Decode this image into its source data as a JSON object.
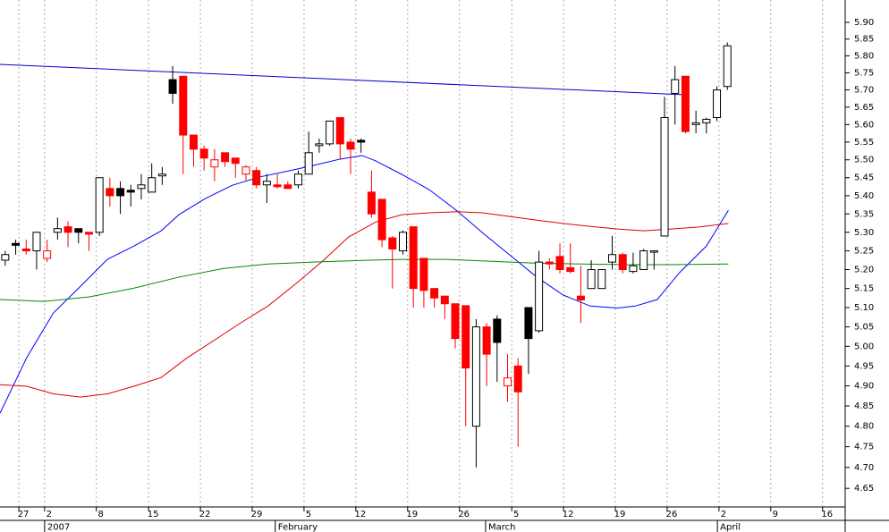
{
  "chart_data": {
    "type": "candlestick",
    "log_scale": true,
    "grid": true,
    "color": "#000000",
    "down_color": "#ff0000",
    "xlim": [
      -0.5,
      80.26
    ],
    "ylim": [
      4.606,
      5.968
    ],
    "yticks": [
      4.65,
      4.7,
      4.75,
      4.8,
      4.85,
      4.9,
      4.95,
      5,
      5.05,
      5.1,
      5.15,
      5.2,
      5.25,
      5.3,
      5.35,
      5.4,
      5.45,
      5.5,
      5.55,
      5.6,
      5.65,
      5.7,
      5.75,
      5.8,
      5.85,
      5.9
    ],
    "yticks_labels": [
      "4.65",
      "4.70",
      "4.75",
      "4.80",
      "4.85",
      "4.90",
      "4.95",
      "5.00",
      "5.05",
      "5.10",
      "5.15",
      "5.20",
      "5.25",
      "5.30",
      "5.35",
      "5.40",
      "5.45",
      "5.50",
      "5.55",
      "5.60",
      "5.65",
      "5.70",
      "5.75",
      "5.80",
      "5.85",
      "5.90"
    ],
    "xticks": [
      {
        "value": 1.3,
        "label": "27"
      },
      {
        "value": 3.76,
        "label": "2"
      },
      {
        "value": 8.7,
        "label": "8"
      },
      {
        "value": 13.7,
        "label": "15"
      },
      {
        "value": 18.65,
        "label": "22"
      },
      {
        "value": 23.6,
        "label": "29"
      },
      {
        "value": 28.55,
        "label": "5"
      },
      {
        "value": 33.5,
        "label": "12"
      },
      {
        "value": 38.45,
        "label": "19"
      },
      {
        "value": 43.4,
        "label": "26"
      },
      {
        "value": 48.4,
        "label": "5"
      },
      {
        "value": 53.35,
        "label": "12"
      },
      {
        "value": 58.3,
        "label": "19"
      },
      {
        "value": 63.25,
        "label": "26"
      },
      {
        "value": 68.2,
        "label": "2"
      },
      {
        "value": 73.15,
        "label": "9"
      },
      {
        "value": 78.1,
        "label": "16"
      }
    ],
    "months": [
      {
        "value": 3.76,
        "label": "2007"
      },
      {
        "value": 25.8,
        "label": "February"
      },
      {
        "value": 45.9,
        "label": "March"
      },
      {
        "value": 68.05,
        "label": "April"
      }
    ],
    "candles": [
      {
        "o": 5.225,
        "h": 5.25,
        "l": 5.21,
        "c": 5.24
      },
      {
        "o": 5.27,
        "h": 5.28,
        "l": 5.24,
        "c": 5.265
      },
      {
        "o": 5.255,
        "h": 5.28,
        "l": 5.24,
        "c": 5.25
      },
      {
        "o": 5.25,
        "h": 5.3,
        "l": 5.2,
        "c": 5.3
      },
      {
        "o": 5.23,
        "h": 5.28,
        "l": 5.22,
        "c": 5.25
      },
      {
        "o": 5.3,
        "h": 5.34,
        "l": 5.28,
        "c": 5.31
      },
      {
        "o": 5.315,
        "h": 5.33,
        "l": 5.26,
        "c": 5.3
      },
      {
        "o": 5.31,
        "h": 5.31,
        "l": 5.27,
        "c": 5.3
      },
      {
        "o": 5.3,
        "h": 5.3,
        "l": 5.25,
        "c": 5.295
      },
      {
        "o": 5.3,
        "h": 5.45,
        "l": 5.29,
        "c": 5.45
      },
      {
        "o": 5.42,
        "h": 5.45,
        "l": 5.37,
        "c": 5.4
      },
      {
        "o": 5.42,
        "h": 5.44,
        "l": 5.35,
        "c": 5.4
      },
      {
        "o": 5.415,
        "h": 5.43,
        "l": 5.37,
        "c": 5.41
      },
      {
        "o": 5.42,
        "h": 5.46,
        "l": 5.39,
        "c": 5.43
      },
      {
        "o": 5.41,
        "h": 5.49,
        "l": 5.41,
        "c": 5.45
      },
      {
        "o": 5.455,
        "h": 5.48,
        "l": 5.43,
        "c": 5.46
      },
      {
        "o": 5.73,
        "h": 5.77,
        "l": 5.66,
        "c": 5.69
      },
      {
        "o": 5.74,
        "h": 5.74,
        "l": 5.46,
        "c": 5.57
      },
      {
        "o": 5.57,
        "h": 5.57,
        "l": 5.48,
        "c": 5.53
      },
      {
        "o": 5.53,
        "h": 5.54,
        "l": 5.47,
        "c": 5.505
      },
      {
        "o": 5.48,
        "h": 5.53,
        "l": 5.44,
        "c": 5.5
      },
      {
        "o": 5.52,
        "h": 5.52,
        "l": 5.48,
        "c": 5.495
      },
      {
        "o": 5.505,
        "h": 5.505,
        "l": 5.45,
        "c": 5.49
      },
      {
        "o": 5.46,
        "h": 5.485,
        "l": 5.44,
        "c": 5.48
      },
      {
        "o": 5.47,
        "h": 5.48,
        "l": 5.42,
        "c": 5.43
      },
      {
        "o": 5.43,
        "h": 5.46,
        "l": 5.38,
        "c": 5.44
      },
      {
        "o": 5.43,
        "h": 5.46,
        "l": 5.42,
        "c": 5.425
      },
      {
        "o": 5.43,
        "h": 5.44,
        "l": 5.42,
        "c": 5.42
      },
      {
        "o": 5.43,
        "h": 5.47,
        "l": 5.42,
        "c": 5.46
      },
      {
        "o": 5.46,
        "h": 5.58,
        "l": 5.46,
        "c": 5.52
      },
      {
        "o": 5.54,
        "h": 5.56,
        "l": 5.52,
        "c": 5.545
      },
      {
        "o": 5.545,
        "h": 5.61,
        "l": 5.54,
        "c": 5.61
      },
      {
        "o": 5.62,
        "h": 5.62,
        "l": 5.5,
        "c": 5.545
      },
      {
        "o": 5.55,
        "h": 5.56,
        "l": 5.46,
        "c": 5.53
      },
      {
        "o": 5.555,
        "h": 5.56,
        "l": 5.52,
        "c": 5.55
      },
      {
        "o": 5.41,
        "h": 5.47,
        "l": 5.34,
        "c": 5.35
      },
      {
        "o": 5.39,
        "h": 5.39,
        "l": 5.26,
        "c": 5.28
      },
      {
        "o": 5.285,
        "h": 5.29,
        "l": 5.15,
        "c": 5.255
      },
      {
        "o": 5.25,
        "h": 5.305,
        "l": 5.24,
        "c": 5.3
      },
      {
        "o": 5.315,
        "h": 5.315,
        "l": 5.1,
        "c": 5.15
      },
      {
        "o": 5.23,
        "h": 5.23,
        "l": 5.1,
        "c": 5.145
      },
      {
        "o": 5.15,
        "h": 5.15,
        "l": 5.1,
        "c": 5.125
      },
      {
        "o": 5.13,
        "h": 5.13,
        "l": 5.07,
        "c": 5.11
      },
      {
        "o": 5.11,
        "h": 5.11,
        "l": 4.995,
        "c": 5.02
      },
      {
        "o": 5.105,
        "h": 5.105,
        "l": 4.8,
        "c": 4.945
      },
      {
        "o": 4.8,
        "h": 5.07,
        "l": 4.7,
        "c": 5.05
      },
      {
        "o": 5.05,
        "h": 5.06,
        "l": 4.9,
        "c": 4.98
      },
      {
        "o": 5.07,
        "h": 5.08,
        "l": 4.91,
        "c": 5.01
      },
      {
        "o": 4.9,
        "h": 4.98,
        "l": 4.86,
        "c": 4.92
      },
      {
        "o": 4.95,
        "h": 4.97,
        "l": 4.75,
        "c": 4.885
      },
      {
        "o": 5.1,
        "h": 5.1,
        "l": 4.93,
        "c": 5.02
      },
      {
        "o": 5.04,
        "h": 5.25,
        "l": 5.035,
        "c": 5.22
      },
      {
        "o": 5.22,
        "h": 5.23,
        "l": 5.2,
        "c": 5.215
      },
      {
        "o": 5.235,
        "h": 5.27,
        "l": 5.19,
        "c": 5.2
      },
      {
        "o": 5.205,
        "h": 5.27,
        "l": 5.19,
        "c": 5.195
      },
      {
        "o": 5.13,
        "h": 5.21,
        "l": 5.06,
        "c": 5.12
      },
      {
        "o": 5.15,
        "h": 5.225,
        "l": 5.15,
        "c": 5.2
      },
      {
        "o": 5.15,
        "h": 5.2,
        "l": 5.15,
        "c": 5.2
      },
      {
        "o": 5.22,
        "h": 5.29,
        "l": 5.2,
        "c": 5.24
      },
      {
        "o": 5.24,
        "h": 5.245,
        "l": 5.19,
        "c": 5.2
      },
      {
        "o": 5.195,
        "h": 5.245,
        "l": 5.19,
        "c": 5.21
      },
      {
        "o": 5.2,
        "h": 5.255,
        "l": 5.2,
        "c": 5.25
      },
      {
        "o": 5.25,
        "h": 5.25,
        "l": 5.2,
        "c": 5.25
      },
      {
        "o": 5.29,
        "h": 5.68,
        "l": 5.29,
        "c": 5.62
      },
      {
        "o": 5.69,
        "h": 5.77,
        "l": 5.6,
        "c": 5.73
      },
      {
        "o": 5.74,
        "h": 5.74,
        "l": 5.575,
        "c": 5.58
      },
      {
        "o": 5.6,
        "h": 5.64,
        "l": 5.575,
        "c": 5.605
      },
      {
        "o": 5.605,
        "h": 5.62,
        "l": 5.575,
        "c": 5.615
      },
      {
        "o": 5.62,
        "h": 5.71,
        "l": 5.61,
        "c": 5.7
      },
      {
        "o": 5.71,
        "h": 5.84,
        "l": 5.7,
        "c": 5.83
      }
    ],
    "lines": [
      {
        "color": "#0000cc",
        "x": [
          -0.5,
          64.9
        ],
        "values": [
          5.775,
          5.686
        ]
      },
      {
        "color": "#0000ff",
        "x": [
          -0.5,
          2.05,
          4.6,
          7.2,
          9.75,
          12.3,
          14.9,
          16.6,
          19.1,
          21.7,
          24.3,
          26.8,
          29.4,
          32,
          34.1,
          35.4,
          37.9,
          40.5,
          43.1,
          45.6,
          48.2,
          50.8,
          53.3,
          55.9,
          58.5,
          60.2,
          62.3,
          64.4,
          67,
          69.1
        ],
        "values": [
          4.832,
          4.971,
          5.086,
          5.156,
          5.227,
          5.263,
          5.304,
          5.348,
          5.392,
          5.429,
          5.452,
          5.467,
          5.484,
          5.502,
          5.512,
          5.497,
          5.459,
          5.417,
          5.36,
          5.299,
          5.239,
          5.18,
          5.133,
          5.104,
          5.099,
          5.104,
          5.121,
          5.191,
          5.263,
          5.36
        ]
      },
      {
        "color": "#dd0000",
        "x": [
          -0.5,
          2.05,
          4.6,
          7.2,
          9.75,
          12.3,
          14.9,
          17.4,
          20,
          22.6,
          25.1,
          27.7,
          30.3,
          32.8,
          35.4,
          37.9,
          40.5,
          43.1,
          45.6,
          48.2,
          50.8,
          53.3,
          55.9,
          58.5,
          61,
          63.6,
          66.2,
          69.1
        ],
        "values": [
          4.903,
          4.899,
          4.88,
          4.872,
          4.88,
          4.899,
          4.921,
          4.971,
          5.016,
          5.062,
          5.104,
          5.161,
          5.222,
          5.287,
          5.328,
          5.348,
          5.353,
          5.356,
          5.353,
          5.343,
          5.333,
          5.324,
          5.316,
          5.309,
          5.304,
          5.309,
          5.314,
          5.324
        ]
      },
      {
        "color": "#008800",
        "x": [
          -0.5,
          3.75,
          8.05,
          12.3,
          16.6,
          20.85,
          25.1,
          29.4,
          33.7,
          37.95,
          42.2,
          46.5,
          50.8,
          55.05,
          59.3,
          63.6,
          69.1
        ],
        "values": [
          5.121,
          5.116,
          5.128,
          5.151,
          5.18,
          5.203,
          5.215,
          5.22,
          5.224,
          5.227,
          5.227,
          5.222,
          5.217,
          5.215,
          5.213,
          5.213,
          5.215
        ]
      }
    ]
  }
}
